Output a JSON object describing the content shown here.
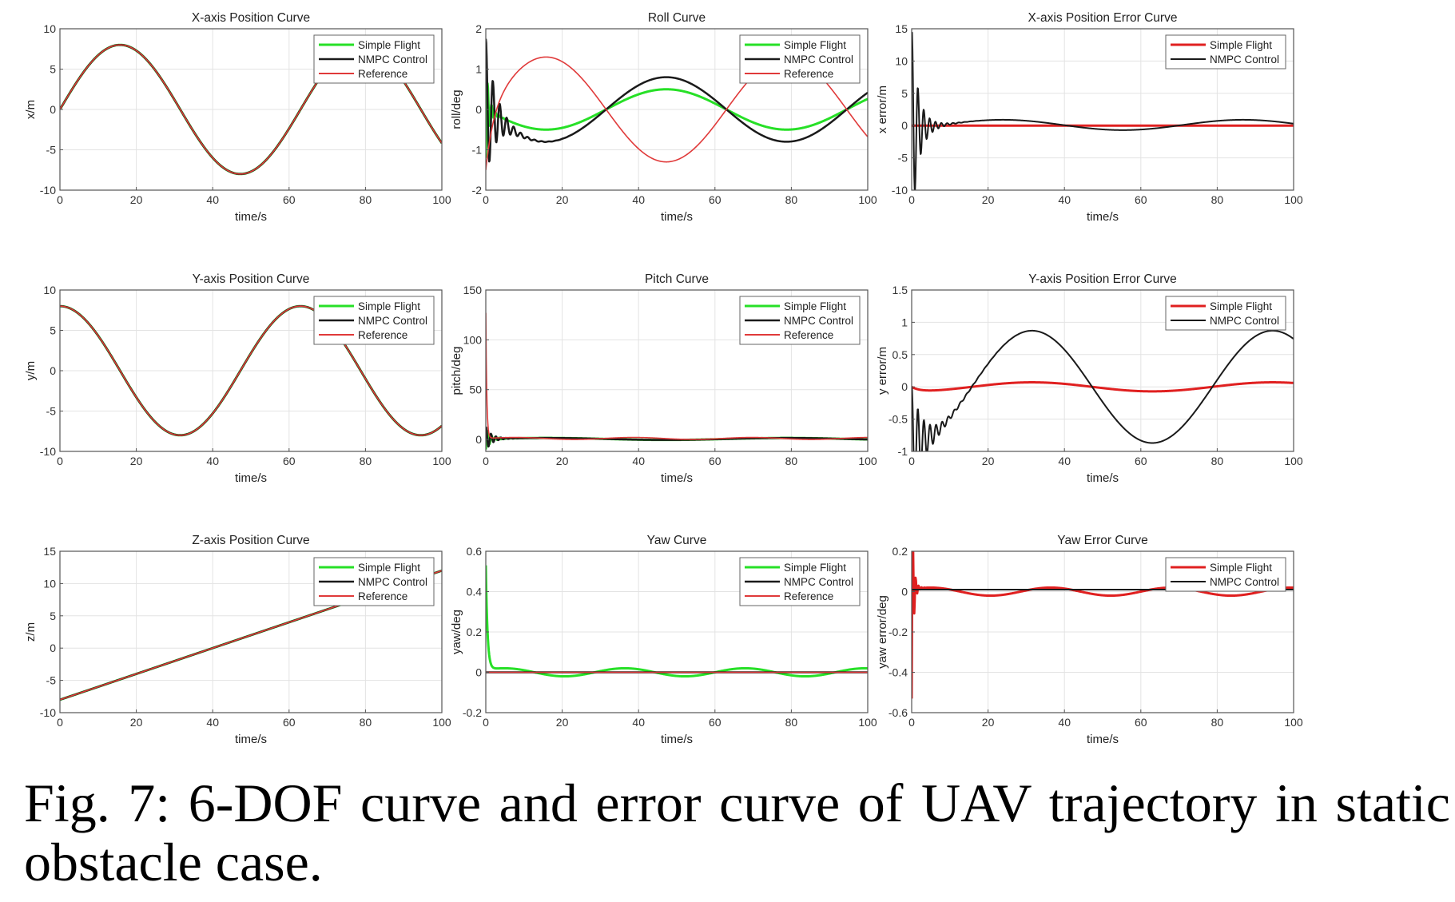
{
  "figure": {
    "caption": "Fig. 7: 6-DOF curve and error curve of UAV trajectory in static obstacle case."
  },
  "colors": {
    "simple_flight": "#27e027",
    "nmpc": "#1a1a1a",
    "reference": "#e03a3a",
    "grid": "#e3e3e3",
    "axis": "#555555"
  },
  "chart_data": [
    {
      "type": "line",
      "title": "X-axis Position Curve",
      "xlabel": "time/s",
      "ylabel": "x/m",
      "xlim": [
        0,
        100
      ],
      "ylim": [
        -10,
        10
      ],
      "xticks": [
        0,
        20,
        40,
        60,
        80,
        100
      ],
      "yticks": [
        -10,
        -5,
        0,
        5,
        10
      ],
      "grid": true,
      "legend": "top-right",
      "series": [
        {
          "name": "Simple Flight",
          "color": "#27e027",
          "width": 3,
          "kind": "sin",
          "A": 8,
          "T": 63,
          "phase": 0,
          "offset": 0,
          "visible": true
        },
        {
          "name": "NMPC Control",
          "color": "#1a1a1a",
          "width": 2.5,
          "kind": "sin",
          "A": 8,
          "T": 63,
          "phase": 0,
          "offset": 0,
          "visible": true
        },
        {
          "name": "Reference",
          "color": "#e03a3a",
          "width": 1.6,
          "kind": "sin",
          "A": 8,
          "T": 63,
          "phase": 0,
          "offset": 0,
          "visible": true
        }
      ]
    },
    {
      "type": "line",
      "title": "Roll Curve",
      "xlabel": "time/s",
      "ylabel": "roll/deg",
      "xlim": [
        0,
        100
      ],
      "ylim": [
        -2,
        2
      ],
      "xticks": [
        0,
        20,
        40,
        60,
        80,
        100
      ],
      "yticks": [
        -2,
        -1,
        0,
        1,
        2
      ],
      "grid": true,
      "legend": "top-right",
      "series": [
        {
          "name": "Simple Flight",
          "color": "#27e027",
          "width": 3,
          "kind": "sin",
          "A": -0.5,
          "T": 63,
          "phase": 0,
          "offset": 0,
          "transient": {
            "start": -1.2,
            "amp": 0.35,
            "tau": 0.8,
            "w": 6
          },
          "visible": true
        },
        {
          "name": "NMPC Control",
          "color": "#1a1a1a",
          "width": 2.5,
          "kind": "sin",
          "A": -0.8,
          "T": 63,
          "phase": 0,
          "offset": 0,
          "transient": {
            "start": 1.75,
            "amp": 0.6,
            "tau": 2.5,
            "w": 3.5
          },
          "visible": true
        },
        {
          "name": "Reference",
          "color": "#e03a3a",
          "width": 1.6,
          "kind": "sin",
          "A": 1.3,
          "T": 63,
          "phase": 0,
          "offset": 0,
          "transient": {
            "start": -1.5,
            "amp": 0,
            "tau": 2,
            "w": 0
          },
          "visible": true
        }
      ]
    },
    {
      "type": "line",
      "title": "X-axis Position Error Curve",
      "xlabel": "time/s",
      "ylabel": "x error/m",
      "xlim": [
        0,
        100
      ],
      "ylim": [
        -10,
        15
      ],
      "xticks": [
        0,
        20,
        40,
        60,
        80,
        100
      ],
      "yticks": [
        -10,
        -5,
        0,
        5,
        10,
        15
      ],
      "grid": true,
      "legend": "top-right",
      "series": [
        {
          "name": "Simple Flight",
          "color": "#e02020",
          "width": 3,
          "kind": "sin",
          "A": 0,
          "T": 63,
          "phase": 0,
          "offset": 0,
          "visible": true
        },
        {
          "name": "NMPC Control",
          "color": "#1a1a1a",
          "width": 2,
          "kind": "sin",
          "A": 0.8,
          "T": 63,
          "phase": 8,
          "offset": 0.1,
          "transient": {
            "start": 14,
            "amp": 13,
            "tau": 1.6,
            "w": 4.2
          },
          "visible": true
        }
      ]
    },
    {
      "type": "line",
      "title": "Y-axis Position Curve",
      "xlabel": "time/s",
      "ylabel": "y/m",
      "xlim": [
        0,
        100
      ],
      "ylim": [
        -10,
        10
      ],
      "xticks": [
        0,
        20,
        40,
        60,
        80,
        100
      ],
      "yticks": [
        -10,
        -5,
        0,
        5,
        10
      ],
      "grid": true,
      "legend": "top-right",
      "series": [
        {
          "name": "Simple Flight",
          "color": "#27e027",
          "width": 3,
          "kind": "cos",
          "A": 8,
          "T": 63,
          "phase": 0,
          "offset": 0,
          "visible": true
        },
        {
          "name": "NMPC Control",
          "color": "#1a1a1a",
          "width": 2.5,
          "kind": "cos",
          "A": 8,
          "T": 63,
          "phase": 0,
          "offset": 0,
          "visible": true
        },
        {
          "name": "Reference",
          "color": "#e03a3a",
          "width": 1.6,
          "kind": "cos",
          "A": 8,
          "T": 63,
          "phase": 0,
          "offset": 0,
          "visible": true
        }
      ]
    },
    {
      "type": "line",
      "title": "Pitch Curve",
      "xlabel": "time/s",
      "ylabel": "pitch/deg",
      "xlim": [
        0,
        100
      ],
      "ylim": [
        -12,
        150
      ],
      "xticks": [
        0,
        20,
        40,
        60,
        80,
        100
      ],
      "yticks": [
        0,
        50,
        100,
        150
      ],
      "grid": true,
      "legend": "top-right",
      "series": [
        {
          "name": "Simple Flight",
          "color": "#27e027",
          "width": 3,
          "kind": "sin",
          "A": 1,
          "T": 63,
          "phase": 0,
          "offset": 0.5,
          "transient": {
            "start": -10,
            "amp": 8,
            "tau": 1.2,
            "w": 6
          },
          "visible": true
        },
        {
          "name": "NMPC Control",
          "color": "#1a1a1a",
          "width": 2.5,
          "kind": "sin",
          "A": 1,
          "T": 63,
          "phase": 0,
          "offset": 0.5,
          "transient": {
            "start": 12,
            "amp": 10,
            "tau": 1.4,
            "w": 5
          },
          "visible": true
        },
        {
          "name": "Reference",
          "color": "#e03a3a",
          "width": 1.6,
          "kind": "sin",
          "A": 1,
          "T": 31,
          "phase": 0,
          "offset": 1,
          "transient": {
            "start": 127,
            "amp": 0,
            "tau": 0.25,
            "w": 0
          },
          "visible": true
        }
      ]
    },
    {
      "type": "line",
      "title": "Y-axis Position Error Curve",
      "xlabel": "time/s",
      "ylabel": "y error/m",
      "xlim": [
        0,
        100
      ],
      "ylim": [
        -1,
        1.5
      ],
      "xticks": [
        0,
        20,
        40,
        60,
        80,
        100
      ],
      "yticks": [
        -1,
        -0.5,
        0,
        0.5,
        1,
        1.5
      ],
      "grid": true,
      "legend": "top-right",
      "series": [
        {
          "name": "Simple Flight",
          "color": "#e02020",
          "width": 3,
          "kind": "cos",
          "A": -0.07,
          "T": 63,
          "phase": 0,
          "offset": 0,
          "transient": {
            "start": 0,
            "amp": 0,
            "tau": 2,
            "w": 0
          },
          "visible": true
        },
        {
          "name": "NMPC Control",
          "color": "#1a1a1a",
          "width": 2,
          "kind": "cos",
          "A": -0.87,
          "T": 63,
          "phase": 0,
          "offset": 0,
          "transient": {
            "start": 0,
            "amp": 0.35,
            "tau": 3,
            "w": 4
          },
          "visible": true
        }
      ]
    },
    {
      "type": "line",
      "title": "Z-axis Position Curve",
      "xlabel": "time/s",
      "ylabel": "z/m",
      "xlim": [
        0,
        100
      ],
      "ylim": [
        -10,
        15
      ],
      "xticks": [
        0,
        20,
        40,
        60,
        80,
        100
      ],
      "yticks": [
        -10,
        -5,
        0,
        5,
        10,
        15
      ],
      "grid": true,
      "legend": "top-right",
      "series": [
        {
          "name": "Simple Flight",
          "color": "#27e027",
          "width": 3,
          "kind": "linear",
          "y0": -8,
          "slope": 0.2,
          "visible": true
        },
        {
          "name": "NMPC Control",
          "color": "#1a1a1a",
          "width": 2.5,
          "kind": "linear",
          "y0": -8,
          "slope": 0.2,
          "visible": true
        },
        {
          "name": "Reference",
          "color": "#e03a3a",
          "width": 1.6,
          "kind": "linear",
          "y0": -8,
          "slope": 0.2,
          "visible": true
        }
      ]
    },
    {
      "type": "line",
      "title": "Yaw Curve",
      "xlabel": "time/s",
      "ylabel": "yaw/deg",
      "xlim": [
        0,
        100
      ],
      "ylim": [
        -0.2,
        0.6
      ],
      "xticks": [
        0,
        20,
        40,
        60,
        80,
        100
      ],
      "yticks": [
        -0.2,
        0,
        0.2,
        0.4,
        0.6
      ],
      "grid": true,
      "legend": "top-right",
      "series": [
        {
          "name": "Simple Flight",
          "color": "#27e027",
          "width": 3,
          "kind": "sin",
          "A": 0.02,
          "T": 31.5,
          "phase": -3,
          "offset": 0,
          "transient": {
            "start": 0.53,
            "amp": 0,
            "tau": 0.45,
            "w": 0
          },
          "visible": true
        },
        {
          "name": "NMPC Control",
          "color": "#1a1a1a",
          "width": 2.5,
          "kind": "sin",
          "A": 0,
          "T": 63,
          "phase": 0,
          "offset": 0,
          "visible": true
        },
        {
          "name": "Reference",
          "color": "#e03a3a",
          "width": 1.6,
          "kind": "sin",
          "A": 0,
          "T": 63,
          "phase": 0,
          "offset": 0,
          "visible": true
        }
      ]
    },
    {
      "type": "line",
      "title": "Yaw Error Curve",
      "xlabel": "time/s",
      "ylabel": "yaw error/deg",
      "xlim": [
        0,
        100
      ],
      "ylim": [
        -0.6,
        0.2
      ],
      "xticks": [
        0,
        20,
        40,
        60,
        80,
        100
      ],
      "yticks": [
        -0.6,
        -0.4,
        -0.2,
        0,
        0.2
      ],
      "grid": true,
      "legend": "top-right",
      "series": [
        {
          "name": "Simple Flight",
          "color": "#e02020",
          "width": 3,
          "kind": "sin",
          "A": 0.02,
          "T": 31.5,
          "phase": -3,
          "offset": 0,
          "transient": {
            "start": -0.53,
            "amp": 0.6,
            "tau": 0.35,
            "w": 8
          },
          "visible": true
        },
        {
          "name": "NMPC Control",
          "color": "#1a1a1a",
          "width": 2,
          "kind": "sin",
          "A": 0,
          "T": 63,
          "phase": 0,
          "offset": 0.01,
          "visible": true
        }
      ]
    }
  ]
}
